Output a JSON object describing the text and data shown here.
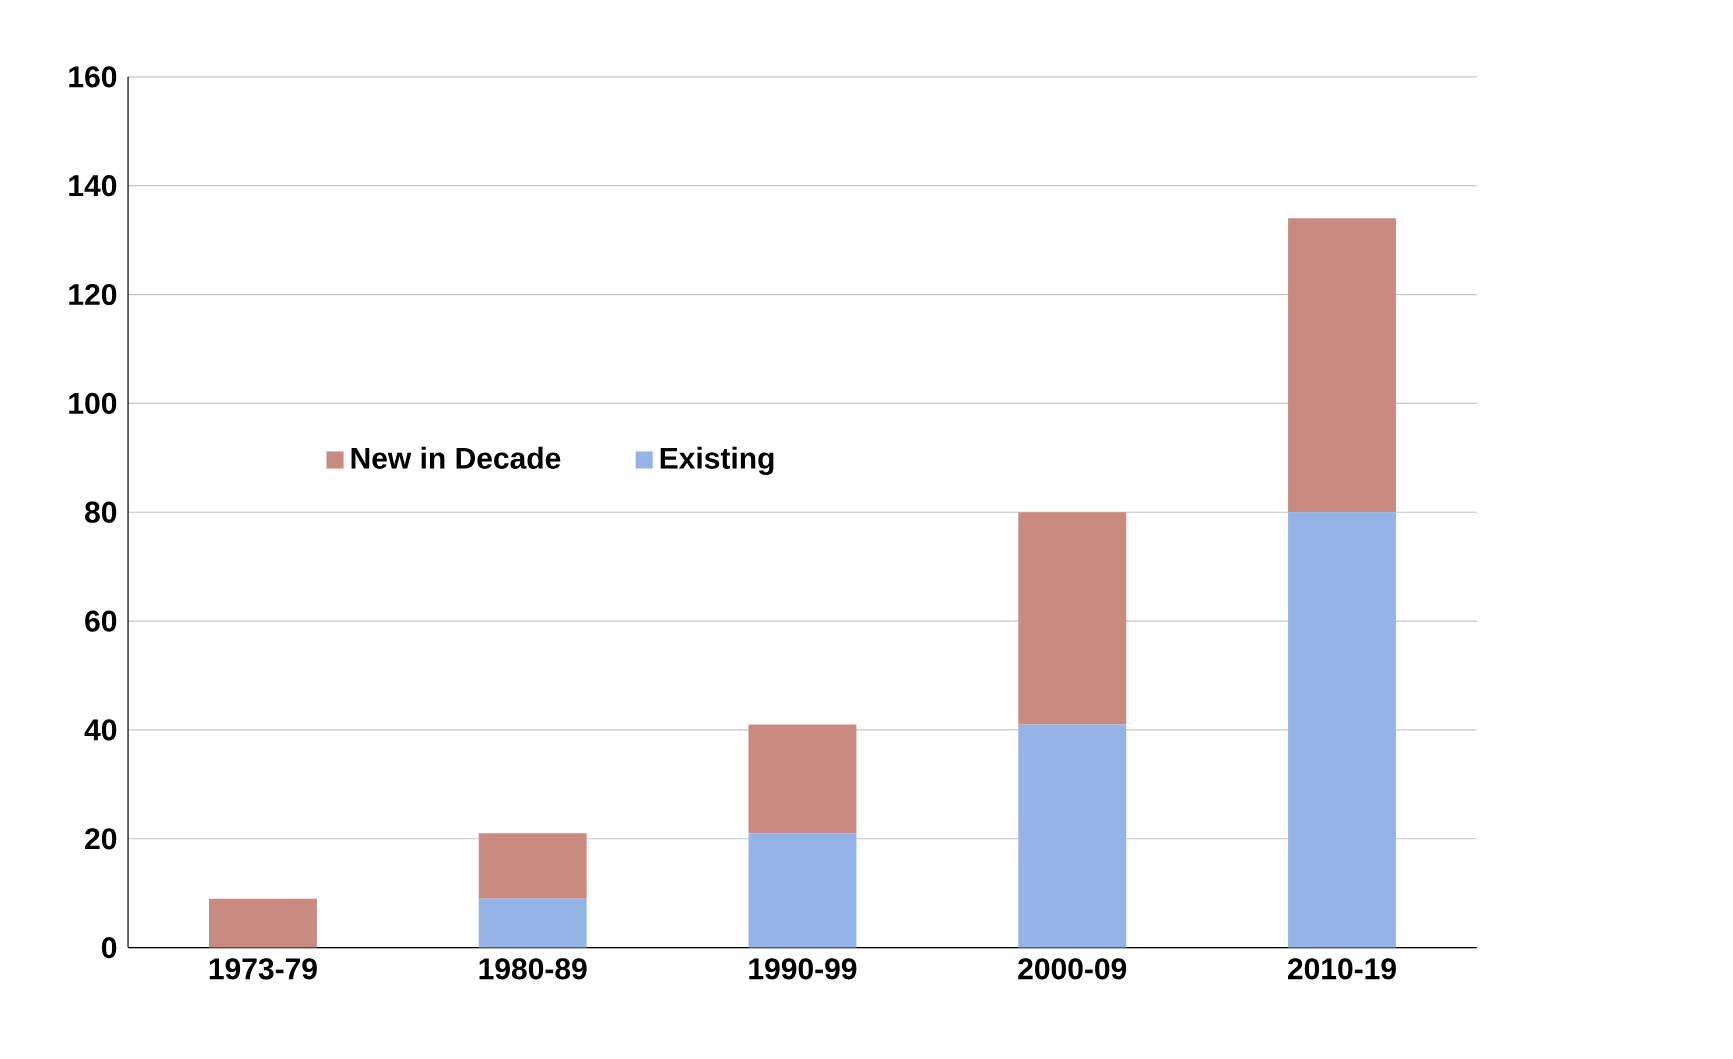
{
  "chart_data": {
    "type": "bar",
    "stacked": true,
    "categories": [
      "1973-79",
      "1980-89",
      "1990-99",
      "2000-09",
      "2010-19"
    ],
    "series": [
      {
        "name": "Existing",
        "color": "#94b3e6",
        "values": [
          0,
          9,
          21,
          41,
          80
        ]
      },
      {
        "name": "New in Decade",
        "color": "#c98a82",
        "values": [
          9,
          12,
          20,
          39,
          54
        ]
      }
    ],
    "ylim": [
      0,
      160
    ],
    "yticks": [
      0,
      20,
      40,
      60,
      80,
      100,
      120,
      140,
      160
    ],
    "grid": "y",
    "legend": "left"
  }
}
